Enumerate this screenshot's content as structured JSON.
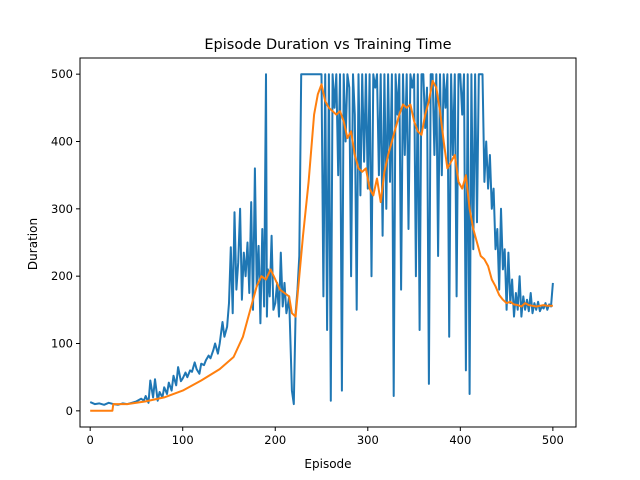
{
  "chart_data": {
    "type": "line",
    "title": "Episode Duration vs Training Time",
    "xlabel": "Episode",
    "ylabel": "Duration",
    "xlim": [
      -11,
      525
    ],
    "ylim": [
      -24,
      524
    ],
    "xticks": [
      0,
      100,
      200,
      300,
      400,
      500
    ],
    "yticks": [
      0,
      100,
      200,
      300,
      400,
      500
    ],
    "grid": false,
    "legend": false,
    "series": [
      {
        "color": "#1f77b4",
        "x": [
          0,
          5,
          10,
          15,
          20,
          25,
          30,
          35,
          40,
          45,
          50,
          55,
          58,
          60,
          63,
          65,
          68,
          70,
          73,
          75,
          78,
          80,
          83,
          85,
          88,
          90,
          93,
          95,
          98,
          100,
          103,
          105,
          108,
          110,
          113,
          115,
          118,
          120,
          123,
          125,
          128,
          130,
          133,
          135,
          138,
          140,
          143,
          145,
          148,
          150,
          152,
          154,
          156,
          158,
          160,
          162,
          164,
          166,
          168,
          170,
          172,
          174,
          176,
          178,
          180,
          182,
          184,
          186,
          188,
          190,
          191,
          192,
          194,
          196,
          198,
          200,
          202,
          204,
          206,
          208,
          210,
          212,
          214,
          215,
          216,
          218,
          220,
          222,
          224,
          226,
          228,
          230,
          235,
          240,
          245,
          248,
          250,
          252,
          254,
          256,
          258,
          260,
          262,
          264,
          266,
          268,
          270,
          272,
          274,
          276,
          278,
          280,
          282,
          284,
          286,
          288,
          290,
          292,
          294,
          296,
          298,
          300,
          302,
          304,
          306,
          308,
          310,
          312,
          314,
          316,
          318,
          320,
          322,
          324,
          326,
          328,
          330,
          332,
          334,
          336,
          338,
          340,
          342,
          344,
          346,
          348,
          350,
          352,
          354,
          356,
          358,
          360,
          362,
          364,
          366,
          368,
          370,
          372,
          374,
          376,
          378,
          380,
          382,
          384,
          386,
          388,
          390,
          392,
          394,
          396,
          398,
          400,
          402,
          404,
          406,
          408,
          410,
          412,
          414,
          416,
          418,
          420,
          422,
          424,
          426,
          428,
          430,
          432,
          434,
          436,
          438,
          440,
          442,
          444,
          446,
          448,
          450,
          452,
          454,
          456,
          458,
          460,
          462,
          464,
          466,
          468,
          470,
          472,
          474,
          476,
          478,
          480,
          482,
          484,
          486,
          488,
          490,
          492,
          494,
          496,
          498,
          500
        ],
        "values": [
          13,
          10,
          11,
          9,
          12,
          10,
          9,
          11,
          10,
          12,
          14,
          18,
          15,
          22,
          12,
          45,
          20,
          47,
          15,
          28,
          20,
          35,
          25,
          42,
          30,
          52,
          38,
          65,
          44,
          48,
          57,
          50,
          60,
          58,
          72,
          62,
          55,
          70,
          68,
          75,
          82,
          78,
          90,
          100,
          85,
          100,
          132,
          110,
          125,
          160,
          243,
          145,
          295,
          180,
          220,
          300,
          165,
          235,
          200,
          250,
          175,
          310,
          150,
          360,
          185,
          245,
          130,
          270,
          155,
          500,
          140,
          210,
          170,
          260,
          150,
          160,
          190,
          140,
          235,
          155,
          190,
          145,
          160,
          170,
          120,
          30,
          10,
          145,
          180,
          230,
          500,
          500,
          500,
          500,
          500,
          500,
          500,
          170,
          500,
          120,
          500,
          15,
          500,
          450,
          500,
          350,
          500,
          30,
          500,
          400,
          500,
          480,
          200,
          500,
          440,
          150,
          500,
          320,
          500,
          370,
          500,
          330,
          500,
          200,
          500,
          480,
          500,
          350,
          500,
          260,
          500,
          300,
          500,
          340,
          500,
          22,
          500,
          440,
          500,
          180,
          500,
          380,
          500,
          270,
          500,
          480,
          500,
          200,
          500,
          120,
          500,
          500,
          420,
          480,
          40,
          500,
          500,
          380,
          500,
          230,
          500,
          350,
          500,
          450,
          500,
          110,
          500,
          380,
          500,
          170,
          500,
          500,
          440,
          500,
          60,
          500,
          25,
          500,
          240,
          500,
          280,
          500,
          500,
          500,
          340,
          400,
          330,
          380,
          300,
          330,
          240,
          270,
          180,
          300,
          210,
          240,
          150,
          235,
          160,
          195,
          140,
          175,
          150,
          200,
          140,
          170,
          150,
          165,
          148,
          175,
          145,
          160,
          150,
          162,
          148,
          155,
          152,
          160,
          150,
          158,
          155,
          190
        ]
      },
      {
        "color": "#ff7f0e",
        "x": [
          0,
          24,
          25,
          40,
          60,
          80,
          100,
          120,
          140,
          155,
          165,
          170,
          175,
          180,
          185,
          190,
          195,
          200,
          205,
          210,
          215,
          218,
          222,
          226,
          230,
          236,
          242,
          246,
          250,
          254,
          258,
          262,
          266,
          270,
          274,
          278,
          282,
          286,
          290,
          294,
          298,
          302,
          306,
          310,
          314,
          318,
          322,
          326,
          330,
          334,
          338,
          342,
          346,
          350,
          354,
          358,
          362,
          366,
          370,
          374,
          378,
          382,
          386,
          390,
          394,
          398,
          402,
          406,
          410,
          414,
          418,
          422,
          426,
          430,
          434,
          438,
          442,
          446,
          450,
          454,
          458,
          462,
          466,
          470,
          474,
          478,
          482,
          486,
          490,
          494,
          498,
          500
        ],
        "values": [
          0,
          0,
          10,
          10,
          14,
          20,
          30,
          45,
          62,
          80,
          110,
          135,
          160,
          185,
          200,
          195,
          210,
          195,
          180,
          175,
          170,
          145,
          140,
          200,
          260,
          340,
          440,
          470,
          485,
          460,
          450,
          445,
          440,
          445,
          430,
          405,
          415,
          380,
          360,
          355,
          360,
          330,
          320,
          345,
          310,
          355,
          380,
          400,
          420,
          440,
          455,
          450,
          455,
          430,
          415,
          410,
          440,
          460,
          490,
          480,
          445,
          400,
          360,
          370,
          380,
          340,
          330,
          350,
          300,
          270,
          250,
          230,
          225,
          215,
          195,
          185,
          172,
          165,
          160,
          162,
          158,
          157,
          155,
          160,
          157,
          156,
          155,
          156,
          157,
          156,
          156,
          156
        ]
      }
    ]
  }
}
